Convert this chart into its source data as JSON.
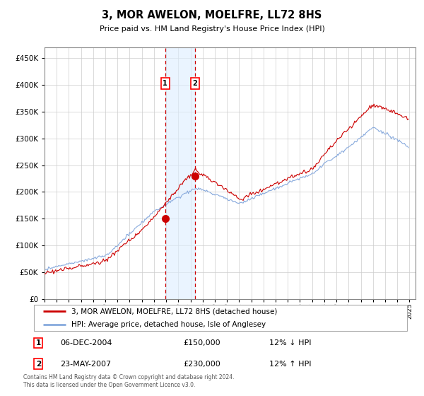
{
  "title": "3, MOR AWELON, MOELFRE, LL72 8HS",
  "subtitle": "Price paid vs. HM Land Registry's House Price Index (HPI)",
  "legend_line1": "3, MOR AWELON, MOELFRE, LL72 8HS (detached house)",
  "legend_line2": "HPI: Average price, detached house, Isle of Anglesey",
  "transaction1_label": "1",
  "transaction1_date": "06-DEC-2004",
  "transaction1_price": "£150,000",
  "transaction1_hpi": "12% ↓ HPI",
  "transaction2_label": "2",
  "transaction2_date": "23-MAY-2007",
  "transaction2_price": "£230,000",
  "transaction2_hpi": "12% ↑ HPI",
  "footer": "Contains HM Land Registry data © Crown copyright and database right 2024.\nThis data is licensed under the Open Government Licence v3.0.",
  "ylim": [
    0,
    470000
  ],
  "yticks": [
    0,
    50000,
    100000,
    150000,
    200000,
    250000,
    300000,
    350000,
    400000,
    450000
  ],
  "color_house": "#cc0000",
  "color_hpi": "#88aadd",
  "color_vline": "#cc0000",
  "color_shade": "#ddeeff",
  "t1_year": 2004.92,
  "t2_year": 2007.37,
  "t1_price": 150000,
  "t2_price": 230000
}
